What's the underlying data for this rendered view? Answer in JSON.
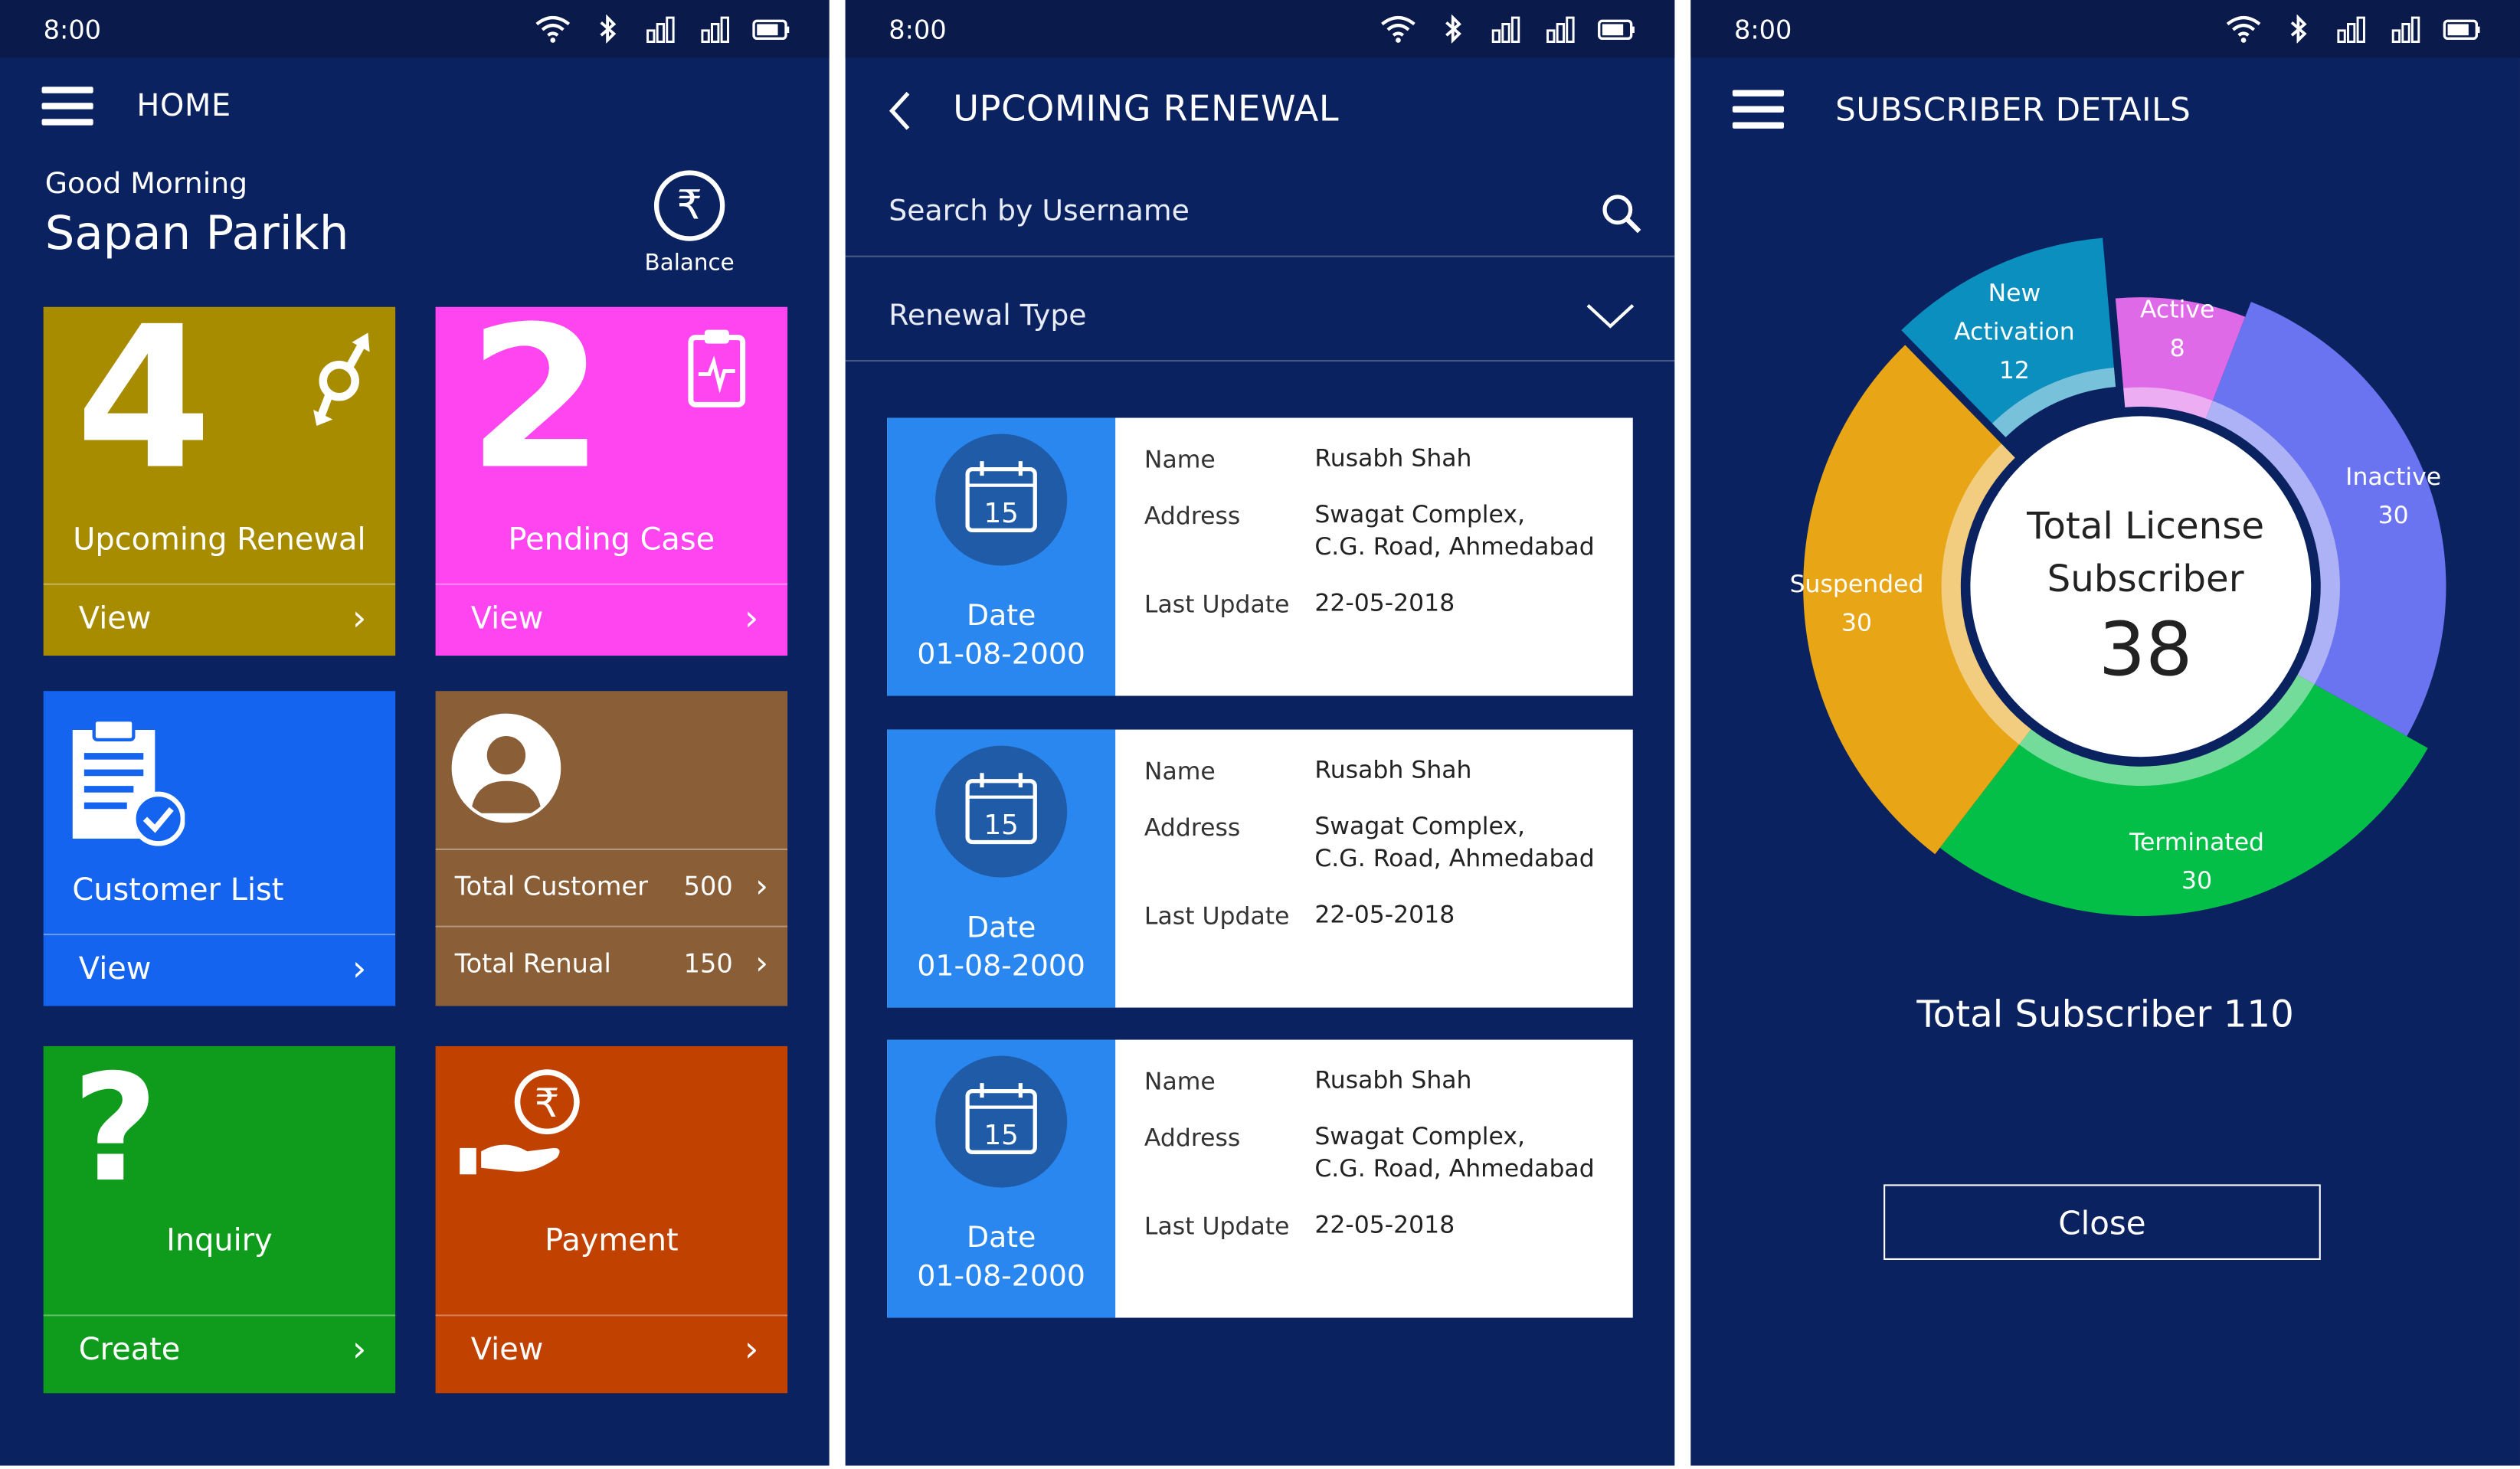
{
  "status_bar": {
    "time": "8:00"
  },
  "home": {
    "title": "HOME",
    "greeting": "Good Morning",
    "user_name": "Sapan Parikh",
    "balance_label": "Balance",
    "tiles": {
      "upcoming_renewal": {
        "count": "4",
        "label": "Upcoming Renewal",
        "action": "View",
        "color": "#a88c00"
      },
      "pending_case": {
        "count": "2",
        "label": "Pending Case",
        "action": "View",
        "color": "#ff45f0"
      },
      "customer_list": {
        "label": "Customer List",
        "action": "View",
        "color": "#1564f0"
      },
      "customer_stats": {
        "color": "#8a5f38",
        "rows": [
          {
            "label": "Total Customer",
            "value": "500"
          },
          {
            "label": "Total Renual",
            "value": "150"
          }
        ]
      },
      "inquiry": {
        "label": "Inquiry",
        "action": "Create",
        "color": "#0f9c1d"
      },
      "payment": {
        "label": "Payment",
        "action": "View",
        "color": "#c14100"
      }
    }
  },
  "renewal": {
    "title": "UPCOMING RENEWAL",
    "search_placeholder": "Search by Username",
    "filter_label": "Renewal Type",
    "cards": [
      {
        "calendar_day": "15",
        "date_label": "Date",
        "date": "01-08-2000",
        "name_label": "Name",
        "name": "Rusabh Shah",
        "address_label": "Address",
        "address_line1": "Swagat Complex,",
        "address_line2": "C.G. Road, Ahmedabad",
        "update_label": "Last Update",
        "last_update": "22-05-2018"
      },
      {
        "calendar_day": "15",
        "date_label": "Date",
        "date": "01-08-2000",
        "name_label": "Name",
        "name": "Rusabh Shah",
        "address_label": "Address",
        "address_line1": "Swagat Complex,",
        "address_line2": "C.G. Road, Ahmedabad",
        "update_label": "Last Update",
        "last_update": "22-05-2018"
      },
      {
        "calendar_day": "15",
        "date_label": "Date",
        "date": "01-08-2000",
        "name_label": "Name",
        "name": "Rusabh Shah",
        "address_label": "Address",
        "address_line1": "Swagat Complex,",
        "address_line2": "C.G. Road, Ahmedabad",
        "update_label": "Last Update",
        "last_update": "22-05-2018"
      }
    ]
  },
  "subscriber": {
    "title": "SUBSCRIBER DETAILS",
    "center_line1": "Total License",
    "center_line2": "Subscriber",
    "center_value": "38",
    "total_text": "Total Subscriber 110",
    "close_label": "Close"
  },
  "chart_data": {
    "type": "pie",
    "title": "",
    "center_label": "Total License Subscriber",
    "center_value": 38,
    "slices": [
      {
        "label": "Active",
        "value": 8,
        "color": "#df6ae8"
      },
      {
        "label": "Inactive",
        "value": 30,
        "color": "#6a74f0"
      },
      {
        "label": "Terminated",
        "value": 30,
        "color": "#03bf47"
      },
      {
        "label": "Suspended",
        "value": 30,
        "color": "#e8a516"
      },
      {
        "label": "New Activation",
        "value": 12,
        "color": "#0a8fbe"
      }
    ]
  }
}
